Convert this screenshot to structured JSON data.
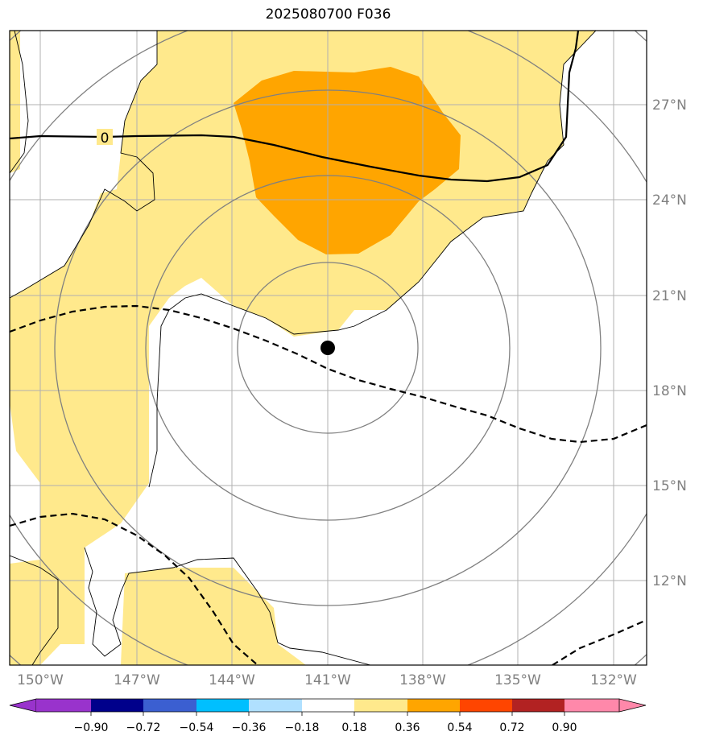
{
  "title": "2025080700 F036",
  "map": {
    "lat_labels": [
      "27°N",
      "24°N",
      "21°N",
      "18°N",
      "15°N",
      "12°N"
    ],
    "lon_labels": [
      "150°W",
      "147°W",
      "144°W",
      "141°W",
      "138°W",
      "135°W",
      "132°W"
    ],
    "contour_label_zero": "0",
    "storm_center": {
      "lat": "19.4°N",
      "lon": "141.0°W"
    },
    "colors": {
      "shade_low": "#ffe98c",
      "shade_mid": "#ffa500",
      "solid_contour": "#000000",
      "range_rings": "#808080",
      "grid": "#b0b0b0",
      "coast": "#000000"
    }
  },
  "colorbar": {
    "labels": [
      "−0.90",
      "−0.72",
      "−0.54",
      "−0.36",
      "−0.18",
      "0.18",
      "0.36",
      "0.54",
      "0.72",
      "0.90"
    ],
    "colors": [
      "#9933cc",
      "#00008b",
      "#3b5fd1",
      "#00bfff",
      "#b0e0ff",
      "#ffffff",
      "#ffe98c",
      "#ffa500",
      "#ff4500",
      "#b22222",
      "#ff88aa"
    ]
  }
}
